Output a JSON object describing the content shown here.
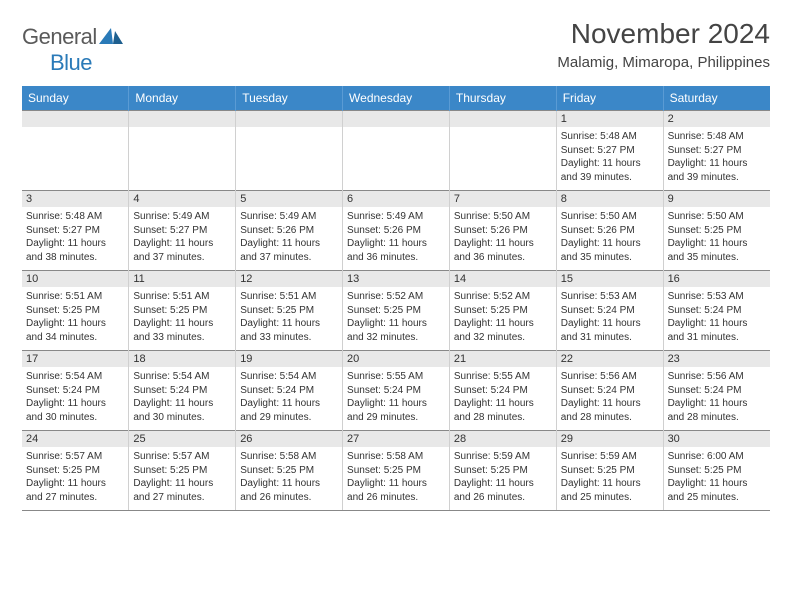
{
  "logo": {
    "text1": "General",
    "text2": "Blue"
  },
  "title": "November 2024",
  "location": "Malamig, Mimaropa, Philippines",
  "colors": {
    "header_bg": "#3b87c8",
    "header_text": "#ffffff",
    "daynum_bg": "#e8e8e8",
    "border": "#888888",
    "cell_border": "#d0d0d0",
    "text": "#333333",
    "logo_gray": "#5a5a5a",
    "logo_blue": "#2a7ab8"
  },
  "weekdays": [
    "Sunday",
    "Monday",
    "Tuesday",
    "Wednesday",
    "Thursday",
    "Friday",
    "Saturday"
  ],
  "weeks": [
    {
      "nums": [
        "",
        "",
        "",
        "",
        "",
        "1",
        "2"
      ],
      "cells": [
        null,
        null,
        null,
        null,
        null,
        {
          "sunrise": "5:48 AM",
          "sunset": "5:27 PM",
          "daylight": "11 hours and 39 minutes."
        },
        {
          "sunrise": "5:48 AM",
          "sunset": "5:27 PM",
          "daylight": "11 hours and 39 minutes."
        }
      ]
    },
    {
      "nums": [
        "3",
        "4",
        "5",
        "6",
        "7",
        "8",
        "9"
      ],
      "cells": [
        {
          "sunrise": "5:48 AM",
          "sunset": "5:27 PM",
          "daylight": "11 hours and 38 minutes."
        },
        {
          "sunrise": "5:49 AM",
          "sunset": "5:27 PM",
          "daylight": "11 hours and 37 minutes."
        },
        {
          "sunrise": "5:49 AM",
          "sunset": "5:26 PM",
          "daylight": "11 hours and 37 minutes."
        },
        {
          "sunrise": "5:49 AM",
          "sunset": "5:26 PM",
          "daylight": "11 hours and 36 minutes."
        },
        {
          "sunrise": "5:50 AM",
          "sunset": "5:26 PM",
          "daylight": "11 hours and 36 minutes."
        },
        {
          "sunrise": "5:50 AM",
          "sunset": "5:26 PM",
          "daylight": "11 hours and 35 minutes."
        },
        {
          "sunrise": "5:50 AM",
          "sunset": "5:25 PM",
          "daylight": "11 hours and 35 minutes."
        }
      ]
    },
    {
      "nums": [
        "10",
        "11",
        "12",
        "13",
        "14",
        "15",
        "16"
      ],
      "cells": [
        {
          "sunrise": "5:51 AM",
          "sunset": "5:25 PM",
          "daylight": "11 hours and 34 minutes."
        },
        {
          "sunrise": "5:51 AM",
          "sunset": "5:25 PM",
          "daylight": "11 hours and 33 minutes."
        },
        {
          "sunrise": "5:51 AM",
          "sunset": "5:25 PM",
          "daylight": "11 hours and 33 minutes."
        },
        {
          "sunrise": "5:52 AM",
          "sunset": "5:25 PM",
          "daylight": "11 hours and 32 minutes."
        },
        {
          "sunrise": "5:52 AM",
          "sunset": "5:25 PM",
          "daylight": "11 hours and 32 minutes."
        },
        {
          "sunrise": "5:53 AM",
          "sunset": "5:24 PM",
          "daylight": "11 hours and 31 minutes."
        },
        {
          "sunrise": "5:53 AM",
          "sunset": "5:24 PM",
          "daylight": "11 hours and 31 minutes."
        }
      ]
    },
    {
      "nums": [
        "17",
        "18",
        "19",
        "20",
        "21",
        "22",
        "23"
      ],
      "cells": [
        {
          "sunrise": "5:54 AM",
          "sunset": "5:24 PM",
          "daylight": "11 hours and 30 minutes."
        },
        {
          "sunrise": "5:54 AM",
          "sunset": "5:24 PM",
          "daylight": "11 hours and 30 minutes."
        },
        {
          "sunrise": "5:54 AM",
          "sunset": "5:24 PM",
          "daylight": "11 hours and 29 minutes."
        },
        {
          "sunrise": "5:55 AM",
          "sunset": "5:24 PM",
          "daylight": "11 hours and 29 minutes."
        },
        {
          "sunrise": "5:55 AM",
          "sunset": "5:24 PM",
          "daylight": "11 hours and 28 minutes."
        },
        {
          "sunrise": "5:56 AM",
          "sunset": "5:24 PM",
          "daylight": "11 hours and 28 minutes."
        },
        {
          "sunrise": "5:56 AM",
          "sunset": "5:24 PM",
          "daylight": "11 hours and 28 minutes."
        }
      ]
    },
    {
      "nums": [
        "24",
        "25",
        "26",
        "27",
        "28",
        "29",
        "30"
      ],
      "cells": [
        {
          "sunrise": "5:57 AM",
          "sunset": "5:25 PM",
          "daylight": "11 hours and 27 minutes."
        },
        {
          "sunrise": "5:57 AM",
          "sunset": "5:25 PM",
          "daylight": "11 hours and 27 minutes."
        },
        {
          "sunrise": "5:58 AM",
          "sunset": "5:25 PM",
          "daylight": "11 hours and 26 minutes."
        },
        {
          "sunrise": "5:58 AM",
          "sunset": "5:25 PM",
          "daylight": "11 hours and 26 minutes."
        },
        {
          "sunrise": "5:59 AM",
          "sunset": "5:25 PM",
          "daylight": "11 hours and 26 minutes."
        },
        {
          "sunrise": "5:59 AM",
          "sunset": "5:25 PM",
          "daylight": "11 hours and 25 minutes."
        },
        {
          "sunrise": "6:00 AM",
          "sunset": "5:25 PM",
          "daylight": "11 hours and 25 minutes."
        }
      ]
    }
  ],
  "labels": {
    "sunrise": "Sunrise: ",
    "sunset": "Sunset: ",
    "daylight": "Daylight: "
  }
}
